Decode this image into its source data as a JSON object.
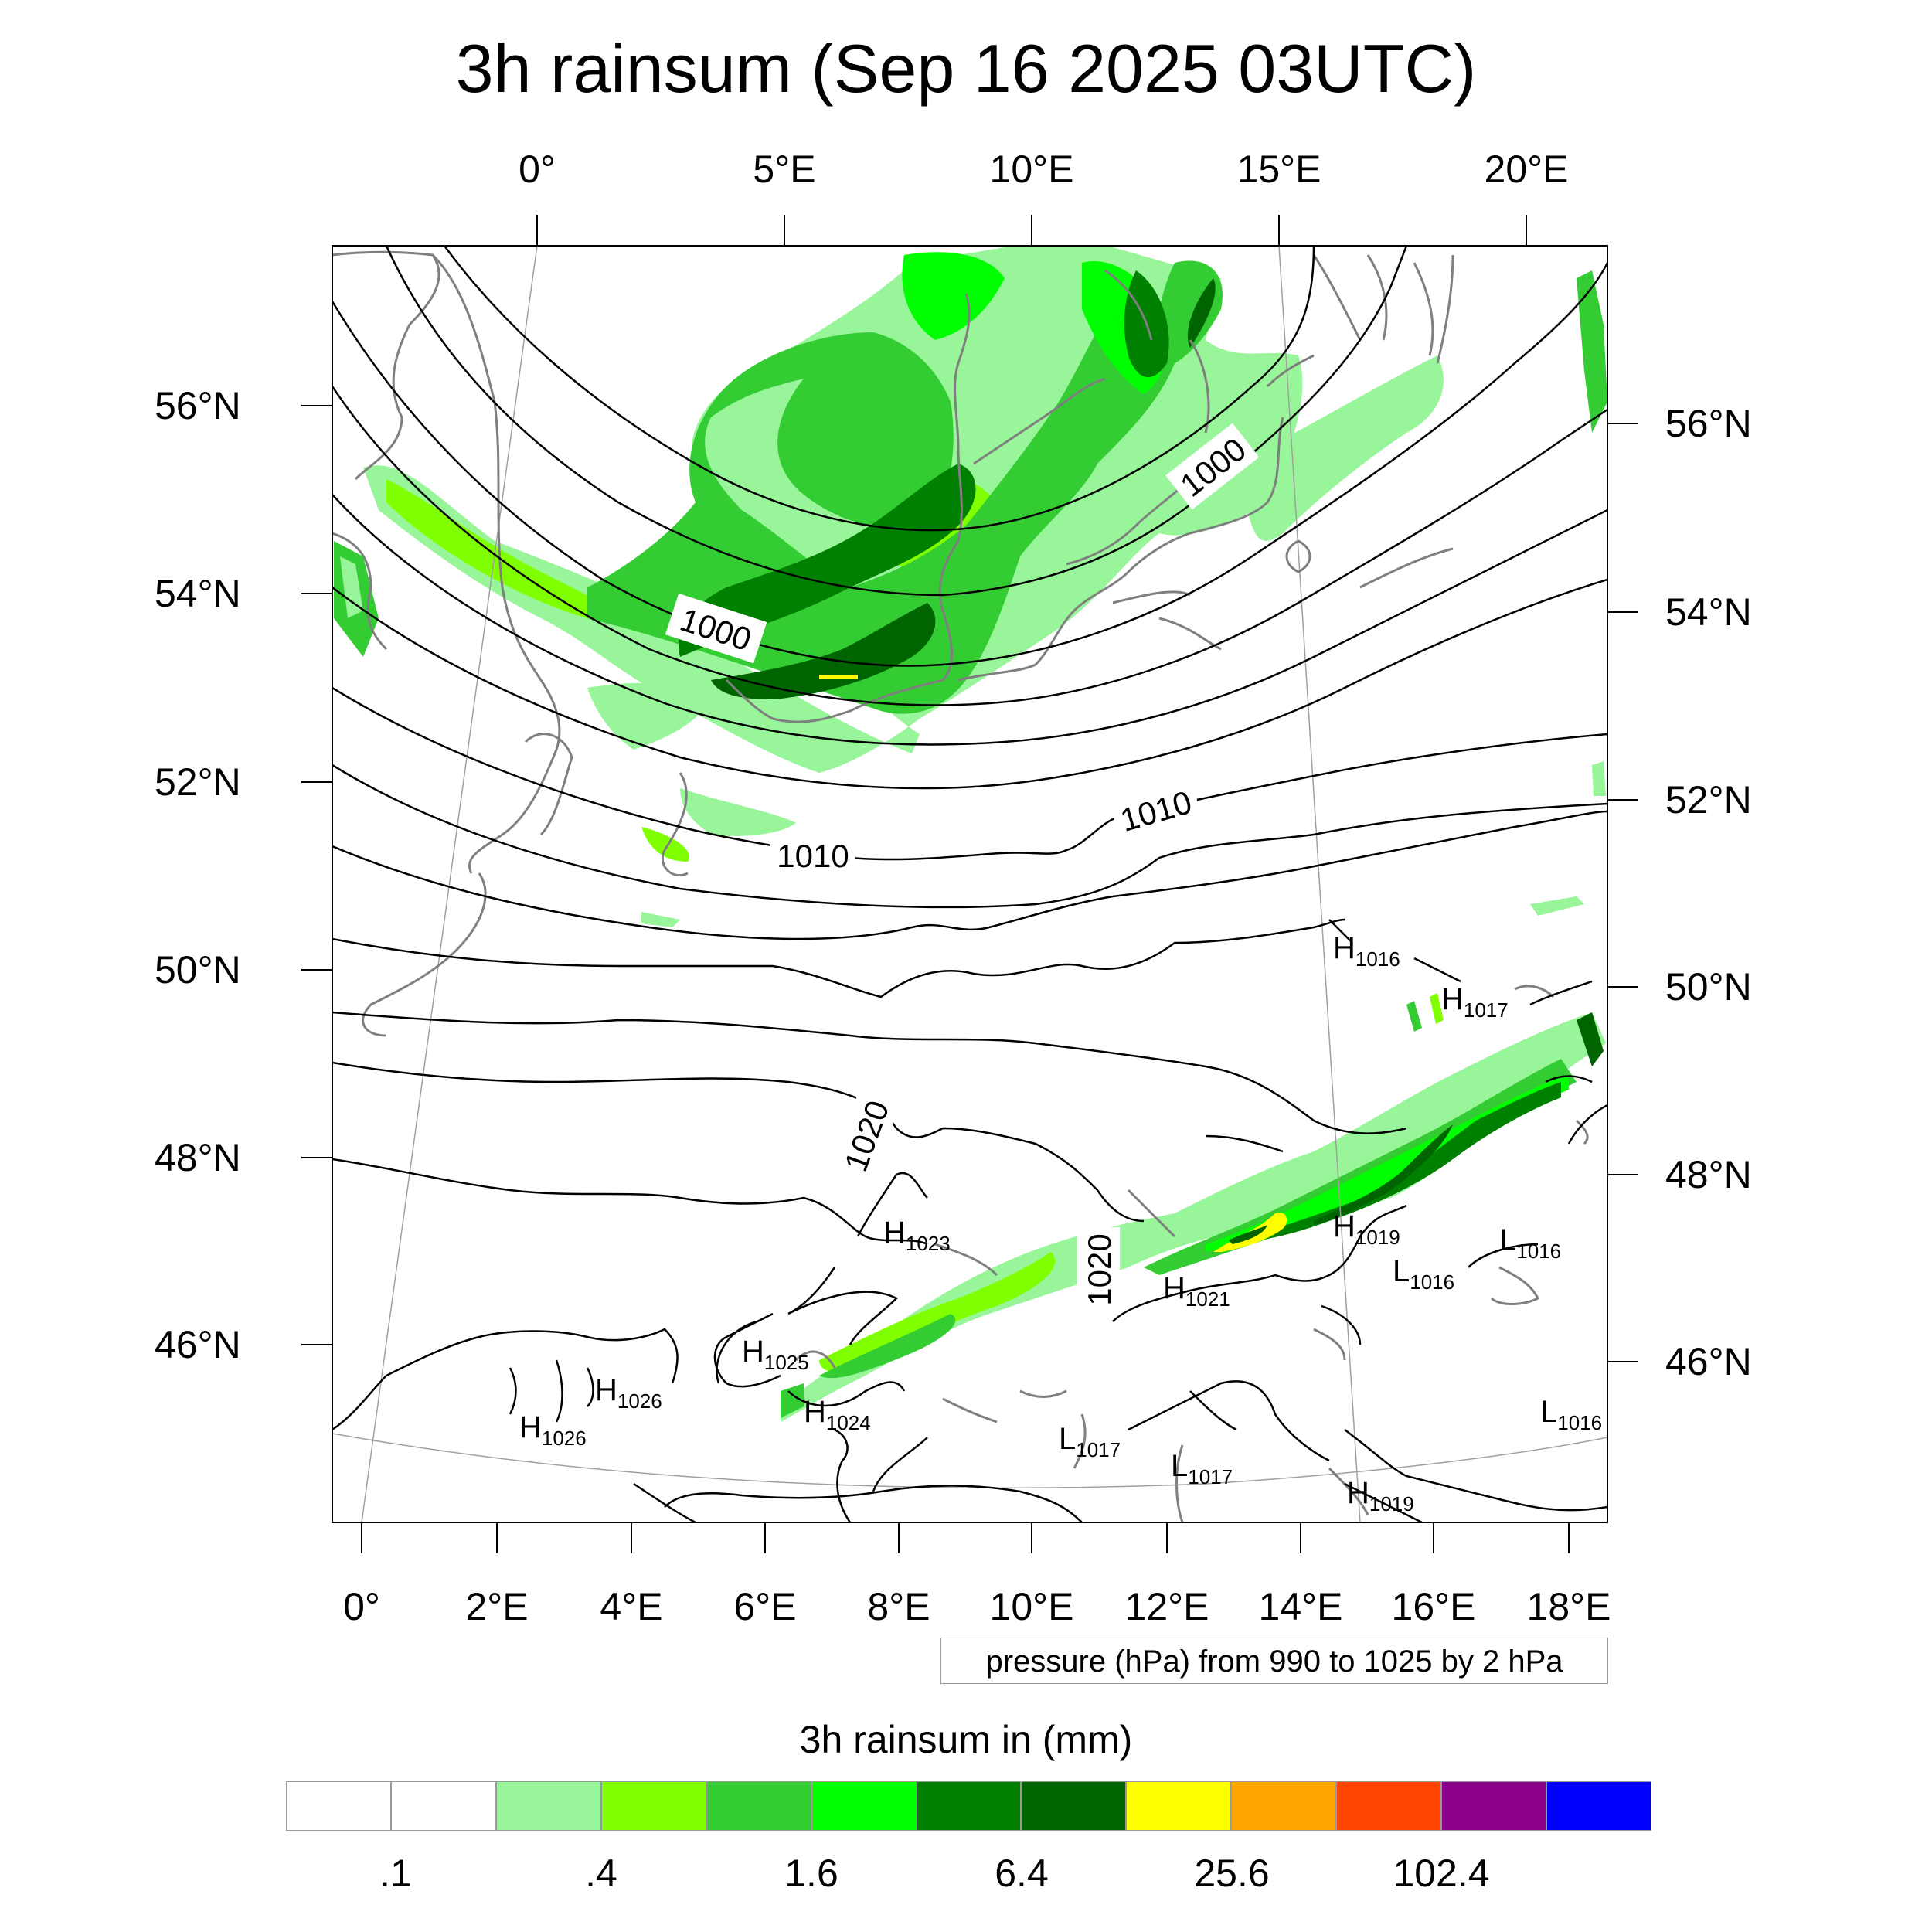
{
  "title": "3h rainsum (Sep 16 2025 03UTC)",
  "top_lon_labels": [
    "0°",
    "5°E",
    "10°E",
    "15°E",
    "20°E"
  ],
  "bottom_lon_labels": [
    "0°",
    "2°E",
    "4°E",
    "6°E",
    "8°E",
    "10°E",
    "12°E",
    "14°E",
    "16°E",
    "18°E"
  ],
  "left_lat_labels": [
    "56°N",
    "54°N",
    "52°N",
    "50°N",
    "48°N",
    "46°N"
  ],
  "right_lat_labels": [
    "56°N",
    "54°N",
    "52°N",
    "50°N",
    "48°N",
    "46°N"
  ],
  "contour_info": "pressure (hPa) from 990 to 1025 by 2 hPa",
  "colorbar": {
    "title": "3h rainsum in (mm)",
    "colors": [
      "#ffffff",
      "#ffffff",
      "#99f599",
      "#80ff00",
      "#33cc33",
      "#00ff00",
      "#008000",
      "#006400",
      "#ffff00",
      "#ffa500",
      "#ff4500",
      "#8b008b",
      "#0000ff"
    ],
    "labels": [
      ".1",
      ".4",
      "1.6",
      "6.4",
      "25.6",
      "102.4"
    ]
  },
  "isobar_labels": [
    "1000",
    "1000",
    "1010",
    "1010",
    "1020",
    "1020"
  ],
  "pressure_centers": [
    {
      "type": "H",
      "value": "1016"
    },
    {
      "type": "H",
      "value": "1017"
    },
    {
      "type": "H",
      "value": "1023"
    },
    {
      "type": "H",
      "value": "1019"
    },
    {
      "type": "L",
      "value": "1016"
    },
    {
      "type": "L",
      "value": "1016"
    },
    {
      "type": "H",
      "value": "1021"
    },
    {
      "type": "H",
      "value": "1025"
    },
    {
      "type": "H",
      "value": "1026"
    },
    {
      "type": "H",
      "value": "1026"
    },
    {
      "type": "H",
      "value": "1024"
    },
    {
      "type": "L",
      "value": "1017"
    },
    {
      "type": "L",
      "value": "1017"
    },
    {
      "type": "H",
      "value": "1019"
    },
    {
      "type": "L",
      "value": "1016"
    }
  ]
}
